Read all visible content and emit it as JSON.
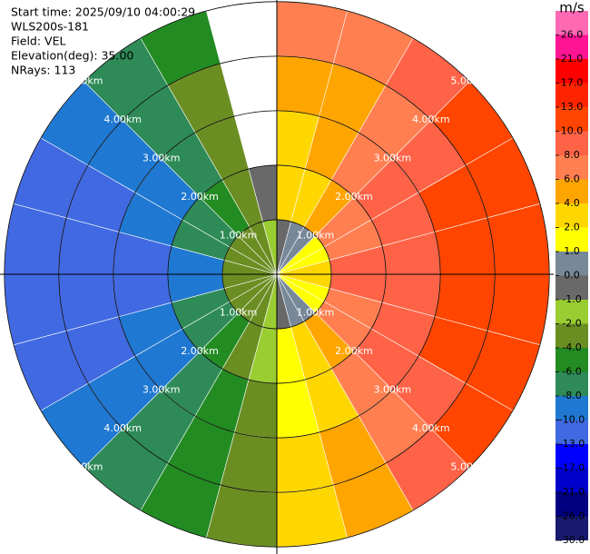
{
  "chart_data": {
    "type": "ppi",
    "header": [
      "Start time: 2025/09/10 04:00:29",
      "WLS200s-181",
      "Field: VEL",
      "Elevation(deg): 35.00",
      "NRays: 113"
    ],
    "azimuth_edges": [
      0,
      15,
      30,
      45,
      60,
      75,
      90,
      105,
      120,
      135,
      150,
      165,
      180,
      195,
      210,
      225,
      240,
      255,
      270,
      285,
      300,
      315,
      330,
      345,
      360
    ],
    "range_km_edges": [
      0,
      1,
      2,
      3,
      4,
      5
    ],
    "rlim": [
      0,
      5.08
    ],
    "range_rings": [
      {
        "value": 1,
        "label": "1.00km"
      },
      {
        "value": 2,
        "label": "2.00km"
      },
      {
        "value": 3,
        "label": "3.00km"
      },
      {
        "value": 4,
        "label": "4.00km"
      },
      {
        "value": 5,
        "label": "5.00km"
      }
    ],
    "velocity": [
      [
        -0.6,
        0.1,
        0.8,
        1.4,
        1.8,
        2,
        2,
        1.8,
        1.4,
        0.8,
        0.1,
        -0.6,
        -1.4,
        -2.1,
        -2.8,
        -3.4,
        -3.8,
        -4,
        -4,
        -3.8,
        -3.4,
        -2.8,
        -2.1,
        -1.4
      ],
      [
        2,
        3.5,
        5,
        6.5,
        7.5,
        8,
        8,
        7.5,
        6.5,
        5,
        3,
        1,
        -2,
        -4,
        -5.5,
        -7,
        -8,
        -8.5,
        -8.5,
        -8,
        -7,
        -5.5,
        -3.5,
        -1
      ],
      [
        3,
        4.5,
        6.5,
        8,
        9.5,
        9.5,
        9.5,
        9,
        8,
        6,
        3.5,
        1.5,
        -2.5,
        -4.5,
        -6.5,
        -8.5,
        -10,
        -11,
        -11,
        -10,
        -9,
        -7,
        -4,
        null
      ],
      [
        5,
        5,
        7,
        9,
        11,
        11.5,
        11.5,
        11,
        9,
        7,
        4,
        2,
        -3,
        -5,
        -7,
        -9,
        -11,
        -12,
        -12,
        -11.5,
        -9,
        -7,
        -4,
        null
      ],
      [
        6,
        6,
        8,
        10,
        12,
        12.5,
        12.5,
        12,
        10,
        8,
        5,
        2,
        -3,
        -5,
        -8,
        -10,
        -12,
        -13,
        -13,
        -12,
        -10,
        -8,
        -5,
        null
      ]
    ],
    "colorbar": {
      "label": "m/s",
      "lim": [
        -30,
        30
      ],
      "ticks": [
        {
          "value": -30,
          "label": "-30.0"
        },
        {
          "value": -26,
          "label": "-26.0"
        },
        {
          "value": -21,
          "label": "-21.0"
        },
        {
          "value": -17,
          "label": "-17.0"
        },
        {
          "value": -13,
          "label": "-13.0"
        },
        {
          "value": -10,
          "label": "-10.0"
        },
        {
          "value": -8,
          "label": "-8.0"
        },
        {
          "value": -6,
          "label": "-6.0"
        },
        {
          "value": -4,
          "label": "-4.0"
        },
        {
          "value": -2,
          "label": "-2.0"
        },
        {
          "value": -1,
          "label": "-1.0"
        },
        {
          "value": 0,
          "label": "0.0"
        },
        {
          "value": 1,
          "label": "1.0"
        },
        {
          "value": 2,
          "label": "2.0"
        },
        {
          "value": 4,
          "label": "4.0"
        },
        {
          "value": 6,
          "label": "6.0"
        },
        {
          "value": 8,
          "label": "8.0"
        },
        {
          "value": 10,
          "label": "10.0"
        },
        {
          "value": 13,
          "label": "13.0"
        },
        {
          "value": 17,
          "label": "17.0"
        },
        {
          "value": 21,
          "label": "21.0"
        },
        {
          "value": 26,
          "label": "26.0"
        }
      ],
      "colors": [
        "#191970",
        "#000080",
        "#0000cd",
        "#0000ff",
        "#4169e1",
        "#1f78d1",
        "#2e8b57",
        "#228b22",
        "#6b8e23",
        "#9acd32",
        "#696969",
        "#778899",
        "#ffff00",
        "#ffd700",
        "#ffa500",
        "#ff7f50",
        "#ff6347",
        "#ff4500",
        "#ff2400",
        "#ff0000",
        "#ff1493",
        "#ff69b4"
      ]
    }
  }
}
